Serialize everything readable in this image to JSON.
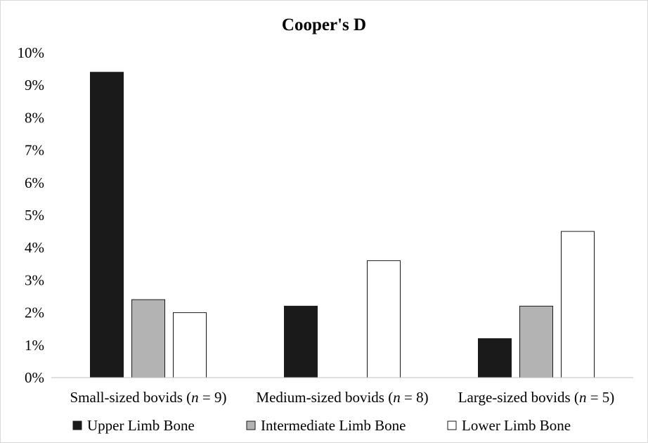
{
  "chart_data": {
    "type": "bar",
    "title": "Cooper's D",
    "categories": [
      [
        "Small-sized bovids (",
        "n",
        " = 9)"
      ],
      [
        "Medium-sized bovids (",
        "n",
        " = 8)"
      ],
      [
        "Large-sized bovids (",
        "n",
        " = 5)"
      ]
    ],
    "series": [
      {
        "name": "Upper Limb Bone",
        "values": [
          9.4,
          2.2,
          1.2
        ],
        "color": "#1a1a1a"
      },
      {
        "name": "Intermediate Limb Bone",
        "values": [
          2.4,
          0,
          2.2
        ],
        "color": "#b3b3b3"
      },
      {
        "name": "Lower Limb Bone",
        "values": [
          2.0,
          3.6,
          4.5
        ],
        "color": "#ffffff"
      }
    ],
    "ylim": [
      0,
      10
    ],
    "yticks": [
      "0%",
      "1%",
      "2%",
      "3%",
      "4%",
      "5%",
      "6%",
      "7%",
      "8%",
      "9%",
      "10%"
    ],
    "grid": false,
    "legend": "bottom",
    "ylabel": "",
    "xlabel": ""
  }
}
